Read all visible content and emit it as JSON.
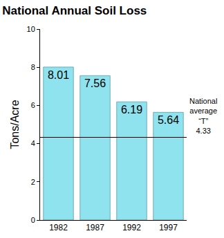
{
  "chart_data": {
    "type": "bar",
    "title": "National Annual Soil Loss",
    "y_label": "Tons/Acre",
    "categories": [
      "1982",
      "1987",
      "1992",
      "1997"
    ],
    "values": [
      8.01,
      7.56,
      6.19,
      5.64
    ],
    "color": "#8fe3ee",
    "ylim": [
      0,
      10
    ],
    "yticks": [
      0,
      2,
      4,
      6,
      8,
      10
    ],
    "grid": false,
    "data_labels": true,
    "reference_line": {
      "value": 4.33,
      "label": "National average “T”"
    }
  }
}
